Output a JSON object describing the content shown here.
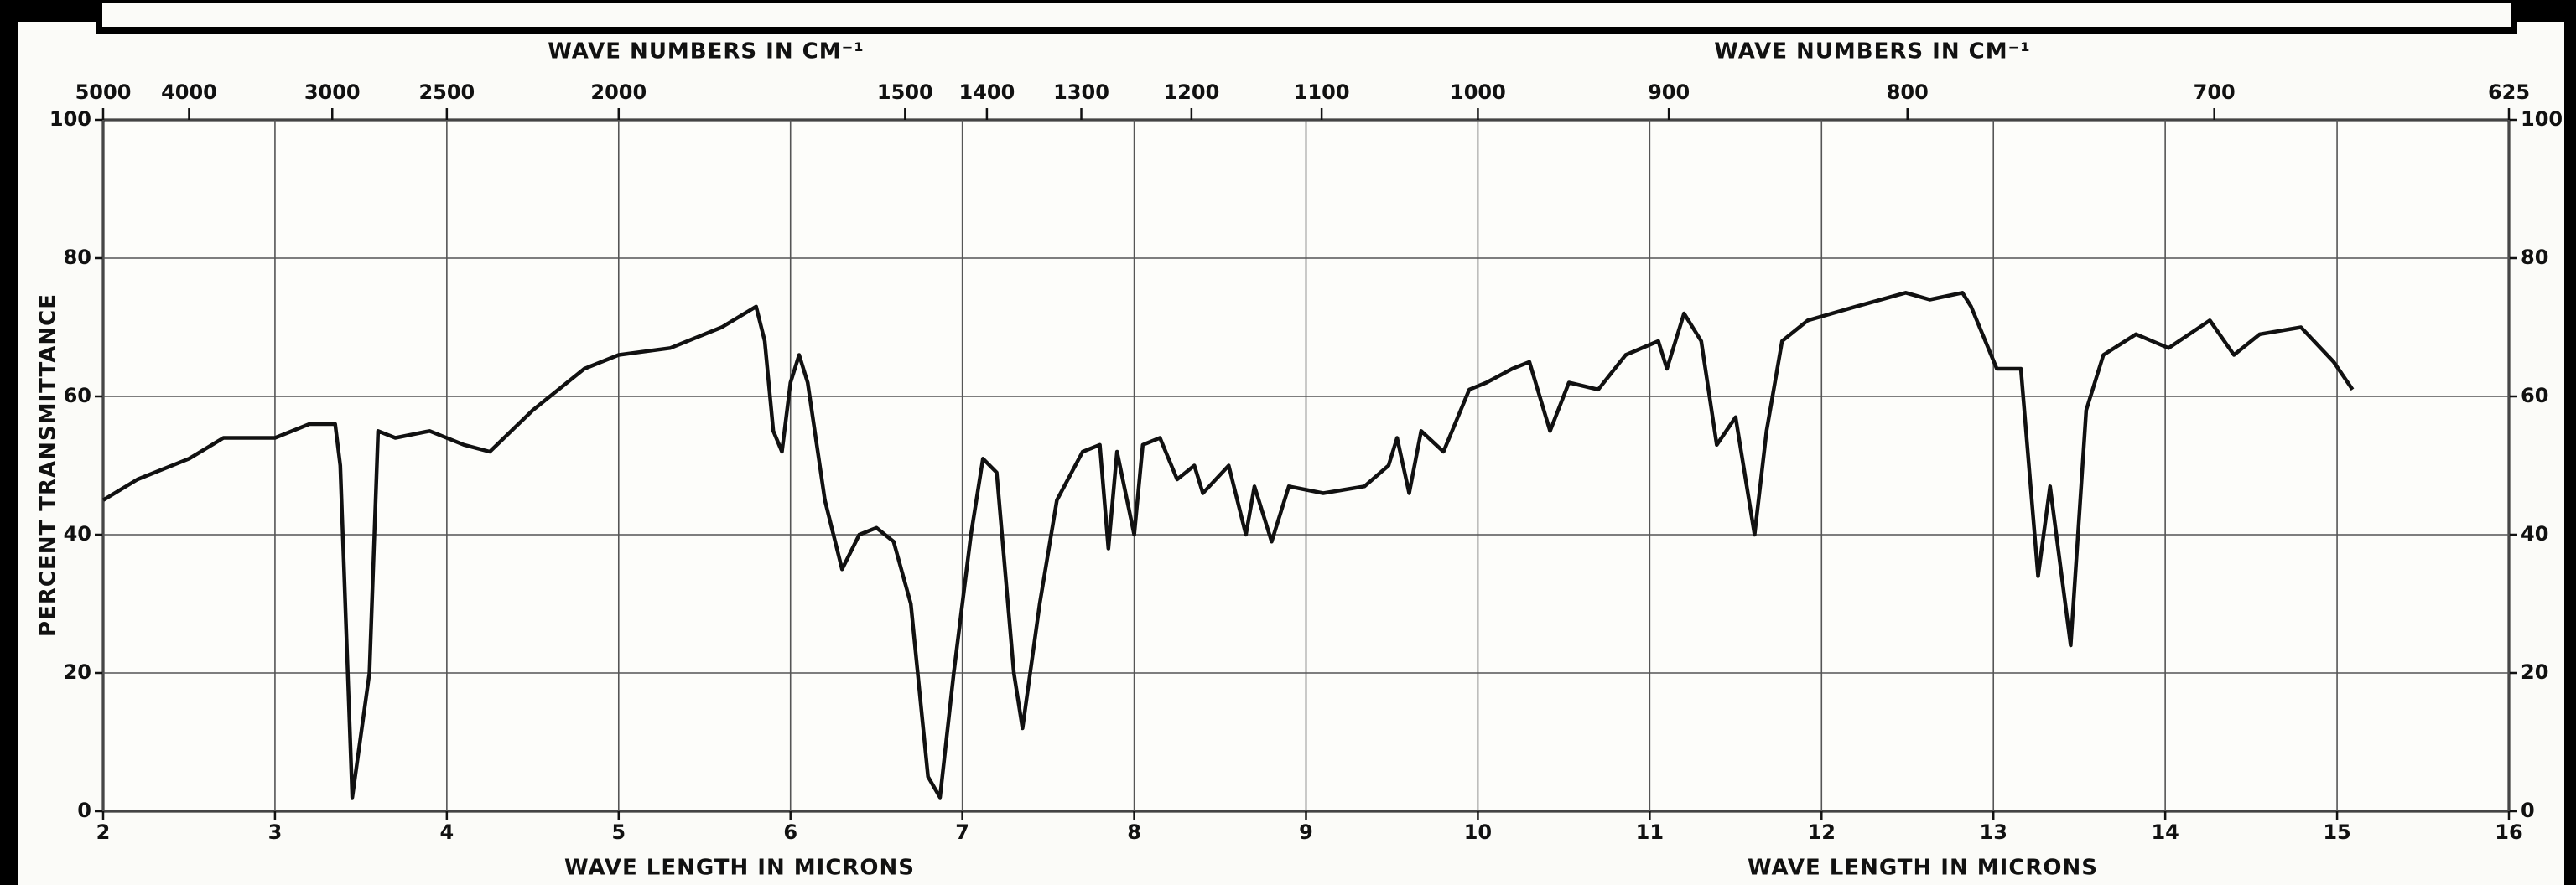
{
  "chart_data": {
    "type": "line",
    "x_label": "WAVE LENGTH IN MICRONS",
    "x2_label": "WAVE NUMBERS IN CM⁻¹",
    "y_label": "PERCENT TRANSMITTANCE",
    "xlim": [
      2,
      16
    ],
    "xticks": [
      2,
      3,
      4,
      5,
      6,
      7,
      8,
      9,
      10,
      11,
      12,
      13,
      14,
      15,
      16
    ],
    "x2lim": [
      5000,
      625
    ],
    "x2_scale": "reciprocal",
    "x2ticks": [
      5000,
      4000,
      3000,
      2500,
      2000,
      1500,
      1400,
      1300,
      1200,
      1100,
      1000,
      900,
      800,
      700,
      625
    ],
    "ylim": [
      0,
      100
    ],
    "yticks": [
      0,
      20,
      40,
      60,
      80,
      100
    ],
    "grid": true,
    "color": "#111111",
    "x": [
      2.0,
      2.2,
      2.5,
      2.7,
      3.0,
      3.2,
      3.35,
      3.38,
      3.45,
      3.55,
      3.6,
      3.7,
      3.9,
      4.1,
      4.25,
      4.5,
      4.8,
      5.0,
      5.3,
      5.6,
      5.8,
      5.85,
      5.9,
      5.95,
      6.0,
      6.05,
      6.1,
      6.2,
      6.3,
      6.4,
      6.5,
      6.6,
      6.7,
      6.8,
      6.87,
      6.95,
      7.05,
      7.12,
      7.2,
      7.3,
      7.35,
      7.45,
      7.55,
      7.7,
      7.8,
      7.85,
      7.9,
      8.0,
      8.05,
      8.15,
      8.25,
      8.35,
      8.4,
      8.55,
      8.65,
      8.7,
      8.8,
      8.9,
      9.1,
      9.34,
      9.48,
      9.53,
      9.6,
      9.67,
      9.8,
      9.95,
      10.05,
      10.2,
      10.3,
      10.42,
      10.53,
      10.7,
      10.86,
      11.05,
      11.1,
      11.2,
      11.3,
      11.39,
      11.5,
      11.61,
      11.68,
      11.77,
      11.92,
      12.2,
      12.49,
      12.63,
      12.82,
      12.87,
      13.02,
      13.16,
      13.26,
      13.33,
      13.45,
      13.54,
      13.64,
      13.83,
      14.02,
      14.26,
      14.4,
      14.55,
      14.79,
      14.98,
      15.09
    ],
    "values": [
      45,
      48,
      51,
      54,
      54,
      56,
      56,
      50,
      2,
      20,
      55,
      54,
      55,
      53,
      52,
      58,
      64,
      66,
      67,
      70,
      73,
      68,
      55,
      52,
      62,
      66,
      62,
      45,
      35,
      40,
      41,
      39,
      30,
      5,
      2,
      20,
      40,
      51,
      49,
      20,
      12,
      30,
      45,
      52,
      53,
      38,
      52,
      40,
      53,
      54,
      48,
      50,
      46,
      50,
      40,
      47,
      39,
      47,
      46,
      47,
      50,
      54,
      46,
      55,
      52,
      61,
      62,
      64,
      65,
      55,
      62,
      61,
      66,
      68,
      64,
      72,
      68,
      53,
      57,
      40,
      55,
      68,
      71,
      73,
      75,
      74,
      75,
      73,
      64,
      64,
      34,
      47,
      24,
      58,
      66,
      69,
      67,
      71,
      66,
      69,
      70,
      65,
      61
    ]
  }
}
